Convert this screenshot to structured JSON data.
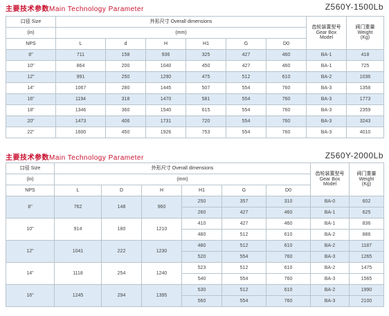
{
  "section1": {
    "title_cn": "主要技术参数",
    "title_en": "Main Technology Parameter",
    "model": "Z560Y-1500Lb",
    "headers": {
      "size": "口径 Size",
      "size_in": "(in)",
      "nps": "NPS",
      "dims": "外形尺寸 Overall dimensions",
      "dims_unit": "(mm)",
      "cols": [
        "L",
        "d",
        "H",
        "H1",
        "G",
        "D0"
      ],
      "gearbox_cn": "齿轮装置型号",
      "gearbox_en": "Gear Box",
      "gearbox_en2": "Model",
      "weight_cn": "阀门重量",
      "weight_en": "Weight",
      "weight_unit": "(Kg)"
    },
    "rows": [
      [
        "8\"",
        "711",
        "158",
        "936",
        "325",
        "427",
        "460",
        "BA-1",
        "418"
      ],
      [
        "10\"",
        "864",
        "200",
        "1040",
        "450",
        "427",
        "460",
        "BA-1",
        "725"
      ],
      [
        "12\"",
        "991",
        "250",
        "1290",
        "475",
        "512",
        "610",
        "BA-2",
        "1036"
      ],
      [
        "14\"",
        "1067",
        "280",
        "1445",
        "507",
        "554",
        "760",
        "BA-3",
        "1358"
      ],
      [
        "16\"",
        "1194",
        "318",
        "1470",
        "581",
        "554",
        "760",
        "BA-3",
        "1773"
      ],
      [
        "18\"",
        "1346",
        "360",
        "1540",
        "615",
        "554",
        "760",
        "BA-3",
        "2359"
      ],
      [
        "20\"",
        "1473",
        "406",
        "1731",
        "720",
        "554",
        "760",
        "BA-3",
        "3243"
      ],
      [
        "22\"",
        "1600",
        "450",
        "1926",
        "753",
        "554",
        "760",
        "BA-3",
        "4010"
      ]
    ]
  },
  "section2": {
    "title_cn": "主要技术参数",
    "title_en": "Main Technology Parameter",
    "model": "Z560Y-2000Lb",
    "headers": {
      "size": "口径 Size",
      "size_in": "(in)",
      "nps": "NPS",
      "dims": "外形尺寸 Overall dimensions",
      "dims_unit": "(mm)",
      "cols": [
        "L",
        "D",
        "H",
        "H1",
        "G",
        "D0"
      ],
      "gearbox_cn": "齿轮装置型号",
      "gearbox_en": "Gear Box",
      "gearbox_en2": "Model",
      "weight_cn": "阀门重量",
      "weight_en": "Weight",
      "weight_unit": "(Kg)"
    },
    "groups": [
      {
        "nps": "8\"",
        "L": "762",
        "D": "148",
        "H": "960",
        "subrows": [
          [
            "250",
            "357",
            "310",
            "BA-0",
            "602"
          ],
          [
            "260",
            "427",
            "460",
            "BA-1",
            "625"
          ]
        ]
      },
      {
        "nps": "10\"",
        "L": "914",
        "D": "180",
        "H": "1210",
        "subrows": [
          [
            "410",
            "427",
            "460",
            "BA-1",
            "836"
          ],
          [
            "480",
            "512",
            "610",
            "BA-2",
            "886"
          ]
        ]
      },
      {
        "nps": "12\"",
        "L": "1041",
        "D": "222",
        "H": "1230",
        "subrows": [
          [
            "480",
            "512",
            "610",
            "BA-2",
            "1187"
          ],
          [
            "520",
            "554",
            "760",
            "BA-3",
            "1265"
          ]
        ]
      },
      {
        "nps": "14\"",
        "L": "1118",
        "D": "254",
        "H": "1240",
        "subrows": [
          [
            "523",
            "512",
            "610",
            "BA-2",
            "1475"
          ],
          [
            "540",
            "554",
            "760",
            "BA-3",
            "1565"
          ]
        ]
      },
      {
        "nps": "16\"",
        "L": "1245",
        "D": "294",
        "H": "1395",
        "subrows": [
          [
            "530",
            "512",
            "610",
            "BA-2",
            "1990"
          ],
          [
            "560",
            "554",
            "760",
            "BA-3",
            "2100"
          ]
        ]
      }
    ]
  }
}
